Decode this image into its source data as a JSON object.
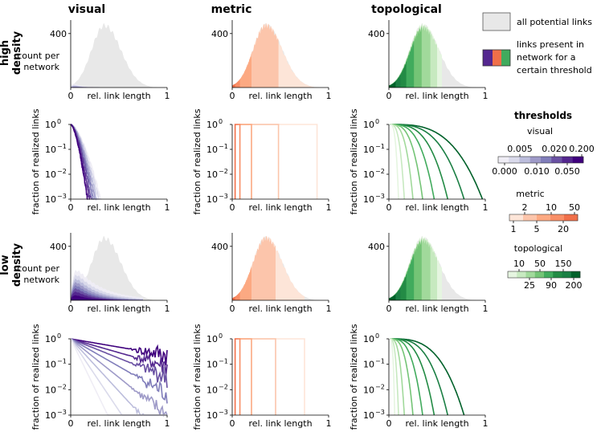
{
  "columns": [
    "visual",
    "metric",
    "topological"
  ],
  "rows": [
    {
      "line1": "high",
      "line2": "density"
    },
    {
      "line1": "low",
      "line2": "density"
    }
  ],
  "legend": {
    "all_label": "all potential links",
    "present_line1": "links present in",
    "present_line2": "network for a",
    "present_line3": "certain threshold"
  },
  "thresholds": {
    "title": "thresholds",
    "visual": {
      "title": "visual",
      "top": [
        "0.005",
        "0.020",
        "0.200"
      ],
      "bottom": [
        "0.000",
        "0.010",
        "0.050"
      ]
    },
    "metric": {
      "title": "metric",
      "top": [
        "2",
        "10",
        "50"
      ],
      "bottom": [
        "1",
        "5",
        "20"
      ]
    },
    "topological": {
      "title": "topological",
      "top": [
        "10",
        "50",
        "150"
      ],
      "bottom": [
        "25",
        "90",
        "200"
      ]
    }
  },
  "colors": {
    "background_hist": "#e8e8e8",
    "visual": [
      "#efedf5",
      "#dadaeb",
      "#bcbddc",
      "#9e9ac8",
      "#807dba",
      "#6a51a3",
      "#54278f",
      "#3f007d"
    ],
    "metric": [
      "#fde5d8",
      "#fcc5ab",
      "#fca982",
      "#f88e66",
      "#f06f49"
    ],
    "topological": [
      "#e5f5e0",
      "#c7e9c0",
      "#a1d99b",
      "#74c476",
      "#41ab5d",
      "#238b45",
      "#1b7f44",
      "#00612a"
    ]
  },
  "axes": {
    "count_ylabel_line1": "count per",
    "count_ylabel_line2": "network",
    "frac_ylabel": "fraction of realized links",
    "xlabel": "rel. link length",
    "x_ticks": [
      "0",
      "1"
    ],
    "count_tick": "400",
    "frac_ticks": [
      "10^0",
      "10^-1",
      "10^-2",
      "10^-3"
    ]
  },
  "chart_data": [
    {
      "type": "area",
      "panel": "high density / visual / counts",
      "x_range": [
        0,
        1
      ],
      "y_tick": 400,
      "background_peak": 460,
      "threshold_curves_peak": [
        60,
        40,
        25,
        15,
        8,
        4,
        2,
        1
      ]
    },
    {
      "type": "area",
      "panel": "high density / metric / counts",
      "x_range": [
        0,
        1
      ],
      "y_tick": 400,
      "background_peak": 460,
      "threshold_cutoffs": [
        0.88,
        0.48,
        0.2,
        0.08,
        0.03
      ]
    },
    {
      "type": "area",
      "panel": "high density / topological / counts",
      "x_range": [
        0,
        1
      ],
      "y_tick": 400,
      "background_peak": 460,
      "threshold_cutoffs": [
        0.55,
        0.5,
        0.43,
        0.34,
        0.26,
        0.18,
        0.12,
        0.07
      ]
    },
    {
      "type": "line",
      "panel": "high density / visual / fraction",
      "x_range": [
        0,
        1
      ],
      "y_log_range": [
        0.001,
        1
      ],
      "cutoffs": [
        0.32,
        0.3,
        0.28,
        0.26,
        0.24,
        0.22,
        0.2,
        0.18
      ]
    },
    {
      "type": "line",
      "panel": "high density / metric / fraction",
      "x_range": [
        0,
        1
      ],
      "y_log_range": [
        0.001,
        1
      ],
      "cutoffs": [
        0.88,
        0.48,
        0.2,
        0.08,
        0.03
      ]
    },
    {
      "type": "line",
      "panel": "high density / topological / fraction",
      "x_range": [
        0,
        1
      ],
      "y_log_range": [
        0.001,
        1
      ],
      "cutoffs": [
        0.97,
        0.78,
        0.61,
        0.47,
        0.35,
        0.25,
        0.16,
        0.1
      ]
    },
    {
      "type": "area",
      "panel": "low density / visual / counts",
      "x_range": [
        0,
        1
      ],
      "y_tick": 400,
      "background_peak": 460,
      "threshold_curves_peak": [
        300,
        260,
        225,
        195,
        165,
        135,
        100,
        60
      ]
    },
    {
      "type": "area",
      "panel": "low density / metric / counts",
      "x_range": [
        0,
        1
      ],
      "y_tick": 400,
      "background_peak": 460,
      "threshold_cutoffs": [
        0.75,
        0.45,
        0.2,
        0.08,
        0.03
      ]
    },
    {
      "type": "area",
      "panel": "low density / topological / counts",
      "x_range": [
        0,
        1
      ],
      "y_tick": 400,
      "background_peak": 460,
      "threshold_cutoffs": [
        0.55,
        0.5,
        0.43,
        0.34,
        0.26,
        0.18,
        0.12,
        0.07
      ]
    },
    {
      "type": "line",
      "panel": "low density / visual / fraction",
      "x_range": [
        0,
        1
      ],
      "y_log_range": [
        0.001,
        1
      ],
      "decay_rates": [
        1.5,
        2.5,
        3.5,
        5,
        7,
        9.5,
        13,
        18
      ]
    },
    {
      "type": "line",
      "panel": "low density / metric / fraction",
      "x_range": [
        0,
        1
      ],
      "y_log_range": [
        0.001,
        1
      ],
      "cutoffs": [
        0.75,
        0.45,
        0.2,
        0.08,
        0.03
      ]
    },
    {
      "type": "line",
      "panel": "low density / topological / fraction",
      "x_range": [
        0,
        1
      ],
      "y_log_range": [
        0.001,
        1
      ],
      "cutoffs": [
        0.78,
        0.61,
        0.47,
        0.35,
        0.25,
        0.16,
        0.1,
        0.06
      ]
    }
  ]
}
